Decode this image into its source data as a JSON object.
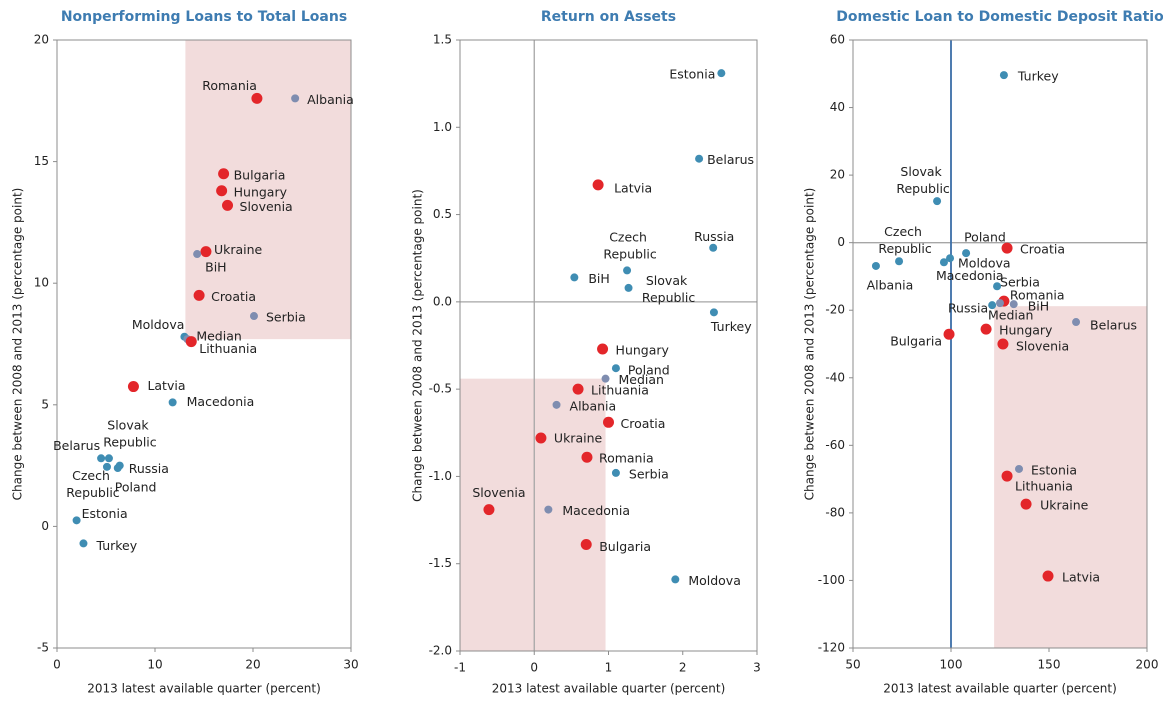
{
  "chart_data": [
    {
      "type": "scatter",
      "title": "Nonperforming Loans to Total Loans",
      "x_label": "2013 latest available quarter (percent)",
      "y_label": "Change between 2008 and 2013 (percentage point)",
      "labels": [
        "Romania",
        "Albania",
        "Bulgaria",
        "Hungary",
        "Slovenia",
        "Ukraine",
        "BiH",
        "Croatia",
        "Serbia",
        "Moldova",
        "Median",
        "Lithuania",
        "Latvia",
        "Macedonia",
        "Belarus",
        "Slovak Republic",
        "Czech Republic",
        "Russia",
        "Poland",
        "Estonia",
        "Turkey"
      ],
      "x": [
        20.4,
        24.3,
        17.0,
        16.8,
        17.4,
        15.2,
        14.3,
        14.5,
        20.1,
        13.0,
        13.3,
        13.7,
        7.8,
        11.8,
        4.5,
        5.3,
        5.1,
        6.4,
        6.2,
        2.0,
        2.7
      ],
      "values": [
        17.6,
        17.6,
        14.5,
        13.8,
        13.2,
        11.3,
        11.2,
        9.5,
        8.65,
        7.8,
        7.7,
        7.6,
        5.75,
        5.1,
        2.8,
        2.8,
        2.45,
        2.5,
        2.4,
        0.25,
        -0.7
      ],
      "colors": [
        "#e3262a",
        "#7f8db0",
        "#e3262a",
        "#e3262a",
        "#e3262a",
        "#e3262a",
        "#7f8db0",
        "#e3262a",
        "#7f8db0",
        "#3f8db3",
        "#7f8db0",
        "#e3262a",
        "#e3262a",
        "#3f8db3",
        "#3f8db3",
        "#3f8db3",
        "#3f8db3",
        "#3f8db3",
        "#3f8db3",
        "#3f8db3",
        "#3f8db3"
      ],
      "highlight": {
        "x": [
          13.1,
          30
        ],
        "y": [
          7.7,
          20
        ],
        "color": "#f2dcdc"
      },
      "xlim": [
        0,
        30
      ],
      "xticks": [
        0,
        10,
        20,
        30
      ],
      "ylim": [
        -5,
        20
      ],
      "yticks": [
        -5,
        0,
        5,
        10,
        15,
        20
      ]
    },
    {
      "type": "scatter",
      "title": "Return on Assets",
      "x_label": "2013 latest available quarter (percent)",
      "y_label": "Change between 2008 and 2013 (percentage point)",
      "labels": [
        "Estonia",
        "Belarus",
        "Latvia",
        "Russia",
        "Czech Republic",
        "BiH",
        "Slovak Republic",
        "Turkey",
        "Hungary",
        "Poland",
        "Median",
        "Lithuania",
        "Albania",
        "Croatia",
        "Ukraine",
        "Romania",
        "Serbia",
        "Slovenia",
        "Macedonia",
        "Bulgaria",
        "Moldova"
      ],
      "x": [
        2.52,
        2.22,
        0.86,
        2.41,
        1.25,
        0.54,
        1.27,
        2.42,
        0.92,
        1.1,
        0.96,
        0.59,
        0.3,
        1.0,
        0.09,
        0.71,
        1.1,
        -0.61,
        0.19,
        0.7,
        1.9
      ],
      "values": [
        1.31,
        0.82,
        0.67,
        0.31,
        0.18,
        0.14,
        0.08,
        -0.06,
        -0.27,
        -0.38,
        -0.44,
        -0.5,
        -0.59,
        -0.69,
        -0.78,
        -0.89,
        -0.98,
        -1.19,
        -1.19,
        -1.39,
        -1.59
      ],
      "colors": [
        "#3f8db3",
        "#3f8db3",
        "#e3262a",
        "#3f8db3",
        "#3f8db3",
        "#3f8db3",
        "#3f8db3",
        "#3f8db3",
        "#e3262a",
        "#3f8db3",
        "#7f8db0",
        "#e3262a",
        "#7f8db0",
        "#e3262a",
        "#e3262a",
        "#e3262a",
        "#3f8db3",
        "#e3262a",
        "#7f8db0",
        "#e3262a",
        "#3f8db3"
      ],
      "highlight": {
        "x": [
          -1,
          0.96
        ],
        "y": [
          -2,
          -0.44
        ],
        "color": "#f2dcdc"
      },
      "hline": 0,
      "vline": 0,
      "ref_color": "#a6a6a6",
      "xlim": [
        -1,
        3
      ],
      "xticks": [
        -1,
        0,
        1,
        2,
        3
      ],
      "ylim": [
        -2,
        1.5
      ],
      "yticks": [
        {
          "value": -2,
          "label": "-2.0"
        },
        -1.5,
        {
          "value": -1,
          "label": "-1.0"
        },
        -0.5,
        {
          "value": 0,
          "label": "0.0"
        },
        0.5,
        {
          "value": 1,
          "label": "1.0"
        },
        1.5
      ]
    },
    {
      "type": "scatter",
      "title": "Domestic Loan to Domestic Deposit Ratio",
      "x_label": "2013 latest available quarter (percent)",
      "y_label": "Change between 2008 and 2013 (percentage point)",
      "labels": [
        "Turkey",
        "Slovak Republic",
        "Czech Republic",
        "Albania",
        "Poland",
        "Moldova",
        "Macedonia",
        "Croatia",
        "Serbia",
        "Romania",
        "Russia",
        "BiH",
        "Median",
        "Belarus",
        "Hungary",
        "Bulgaria",
        "Slovenia",
        "Estonia",
        "Lithuania",
        "Ukraine",
        "Latvia"
      ],
      "x": [
        127,
        92.9,
        73.5,
        61.7,
        107.7,
        99.5,
        96.4,
        128.6,
        123.5,
        127,
        121,
        132,
        125,
        163.8,
        117.9,
        99,
        126.5,
        134.7,
        128.6,
        138.3,
        149.5
      ],
      "values": [
        49.6,
        12.3,
        -5.5,
        -6.9,
        -3.1,
        -4.6,
        -5.8,
        -1.6,
        -12.9,
        -17.3,
        -18.5,
        -18.2,
        -17.9,
        -23.5,
        -25.6,
        -27.1,
        -30,
        -67,
        -69.1,
        -77.4,
        -98.7
      ],
      "colors": [
        "#3f8db3",
        "#3f8db3",
        "#3f8db3",
        "#3f8db3",
        "#3f8db3",
        "#3f8db3",
        "#3f8db3",
        "#e3262a",
        "#3f8db3",
        "#e3262a",
        "#3f8db3",
        "#7f8db0",
        "#7f8db0",
        "#7f8db0",
        "#e3262a",
        "#e3262a",
        "#e3262a",
        "#7f8db0",
        "#e3262a",
        "#e3262a",
        "#e3262a"
      ],
      "highlight": {
        "x": [
          122,
          200
        ],
        "y": [
          -120,
          -18.8
        ],
        "color": "#f2dcdc"
      },
      "hline": 0,
      "vline": 100,
      "ref_color": "#a6a6a6",
      "vline_color": "#3b6ea8",
      "xlim": [
        50,
        200
      ],
      "xticks": [
        50,
        100,
        150,
        200
      ],
      "ylim": [
        -120,
        60
      ],
      "yticks": [
        -120,
        -100,
        -80,
        -60,
        -40,
        -20,
        0,
        20,
        40,
        60
      ]
    }
  ]
}
